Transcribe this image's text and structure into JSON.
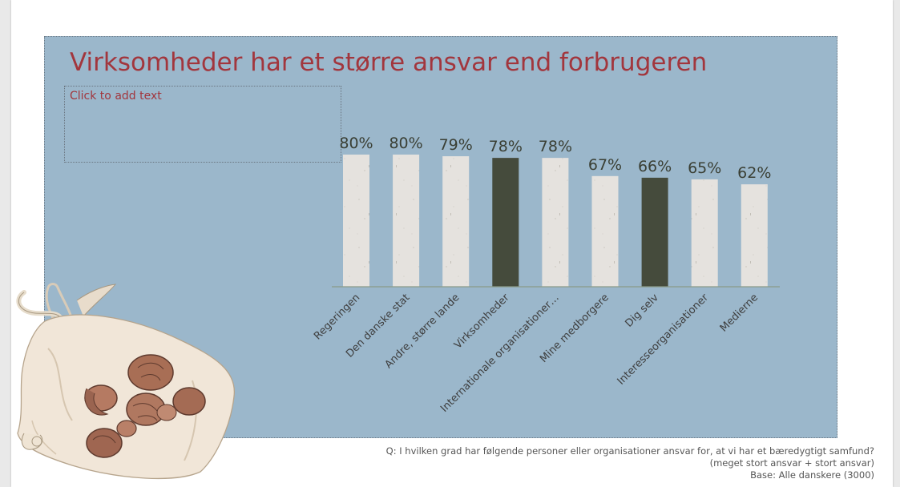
{
  "slide": {
    "title": "Virksomheder har et større ansvar end forbrugeren",
    "placeholder": "Click to add text"
  },
  "footnote": {
    "question": "Q:  I hvilken grad har følgende personer eller organisationer ansvar for, at vi har et bæredygtigt samfund?",
    "answer_scope": "(meget stort ansvar + stort ansvar)",
    "base": "Base: Alle danskere (3000)"
  },
  "chart_data": {
    "type": "bar",
    "categories": [
      "Regeringen",
      "Den danske stat",
      "Andre, større lande",
      "Virksomheder",
      "Internationale organisationer…",
      "Mine medborgere",
      "Dig selv",
      "Interesseorganisationer",
      "Medierne"
    ],
    "values": [
      80,
      80,
      79,
      78,
      78,
      67,
      66,
      65,
      62
    ],
    "value_labels": [
      "80%",
      "80%",
      "79%",
      "78%",
      "78%",
      "67%",
      "66%",
      "65%",
      "62%"
    ],
    "value_unit": "%",
    "highlighted": [
      false,
      false,
      false,
      true,
      false,
      false,
      true,
      false,
      false
    ],
    "colors": {
      "default_bar": "#e5e2de",
      "highlight_bar": "#454b3c",
      "axis": "#8a9a88"
    },
    "ylim": [
      0,
      80
    ]
  },
  "illustration": {
    "icon": "cloth-bag-with-nuts-icon"
  }
}
